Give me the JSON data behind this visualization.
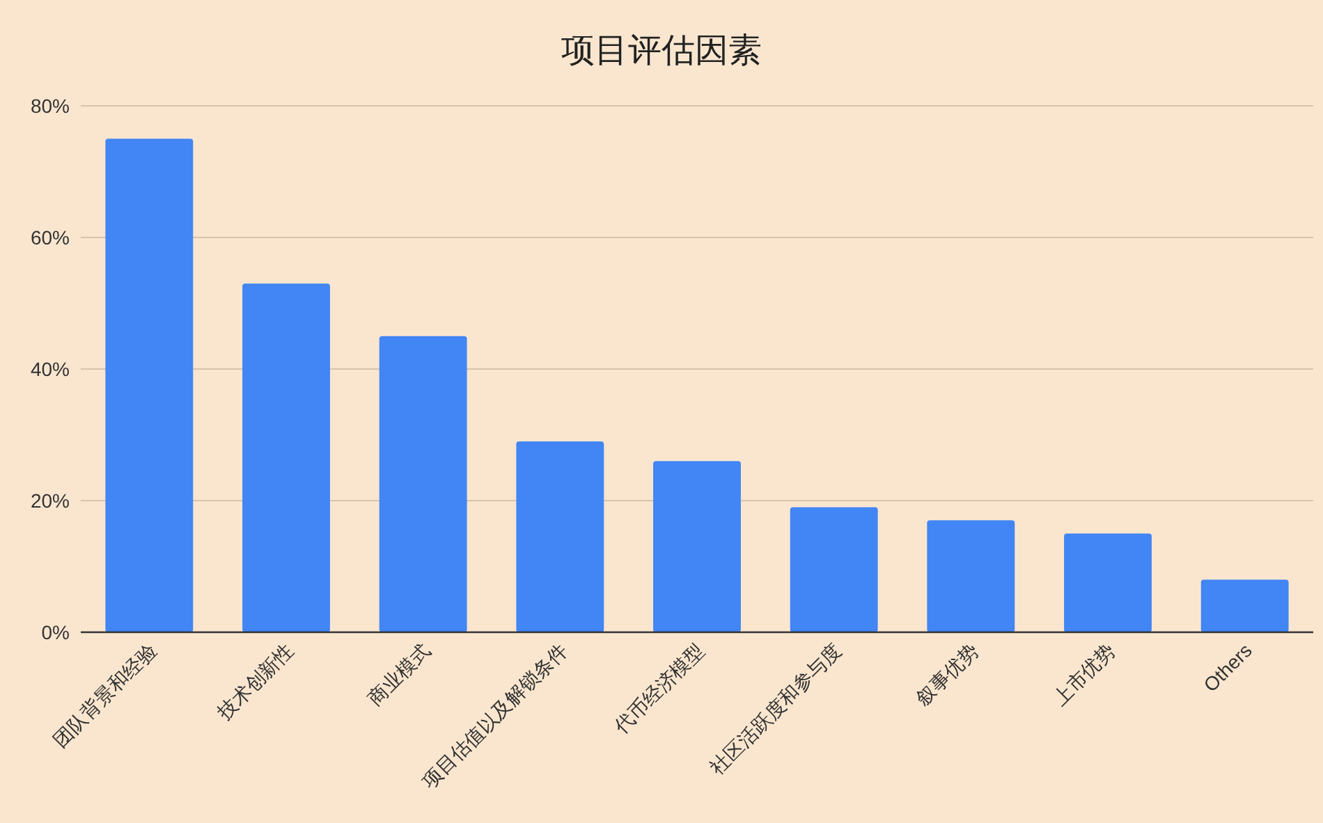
{
  "chart_data": {
    "type": "bar",
    "title": "项目评估因素",
    "categories": [
      "团队背景和经验",
      "技术创新性",
      "商业模式",
      "项目估值以及解锁条件",
      "代币经济模型",
      "社区活跃度和参与度",
      "叙事优势",
      "上市优势",
      "Others"
    ],
    "values": [
      75,
      53,
      45,
      29,
      26,
      19,
      17,
      15,
      8
    ],
    "color": "#4285f4",
    "ylim": [
      0,
      80
    ],
    "yticks": [
      {
        "value": 0,
        "label": "0%"
      },
      {
        "value": 20,
        "label": "20%"
      },
      {
        "value": 40,
        "label": "40%"
      },
      {
        "value": 60,
        "label": "60%"
      },
      {
        "value": 80,
        "label": "80%"
      }
    ],
    "grid": "y"
  }
}
